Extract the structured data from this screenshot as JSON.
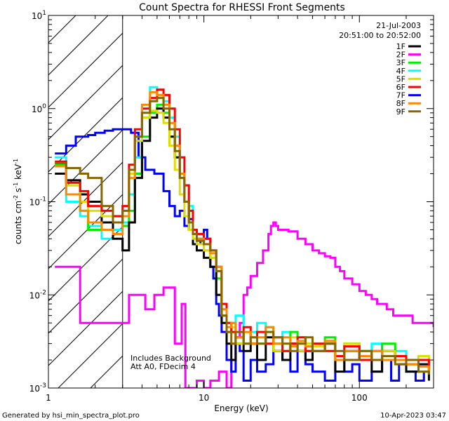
{
  "chart_data": {
    "type": "line",
    "title": "Count Spectra for RHESSI Front Segments",
    "xlabel": "Energy (keV)",
    "ylabel_parts": [
      "counts cm",
      "-2",
      " s",
      "-1",
      " keV",
      "-1"
    ],
    "xscale": "log",
    "yscale": "log",
    "xlim": [
      1,
      300
    ],
    "ylim": [
      0.001,
      10
    ],
    "x_ticks": [
      {
        "value": 1,
        "label": "1"
      },
      {
        "value": 10,
        "label": "10"
      },
      {
        "value": 100,
        "label": "100"
      }
    ],
    "y_ticks": [
      {
        "exp": -3,
        "base": "10",
        "sup": "-3"
      },
      {
        "exp": -2,
        "base": "10",
        "sup": "-2"
      },
      {
        "exp": -1,
        "base": "10",
        "sup": "-1"
      },
      {
        "exp": 0,
        "base": "10",
        "sup": "0"
      },
      {
        "exp": 1,
        "base": "10",
        "sup": "1"
      }
    ],
    "date": "21-Jul-2003",
    "time_range": "20:51:00 to 20:52:00",
    "hatched_region_kev": [
      1,
      3
    ],
    "annotations": [
      "Includes Background",
      "Att A0, FDecim 4"
    ],
    "legend": [
      {
        "name": "1F",
        "color": "#000000"
      },
      {
        "name": "2F",
        "color": "#ff00ff"
      },
      {
        "name": "3F",
        "color": "#00ee00"
      },
      {
        "name": "4F",
        "color": "#00ffff"
      },
      {
        "name": "5F",
        "color": "#dddd00"
      },
      {
        "name": "6F",
        "color": "#ff0000"
      },
      {
        "name": "7F",
        "color": "#0000ff"
      },
      {
        "name": "8F",
        "color": "#ff8800"
      },
      {
        "name": "9F",
        "color": "#886600"
      }
    ],
    "series": [
      {
        "name": "2F",
        "color": "#ff00ff",
        "x": [
          1.1,
          1.45,
          1.6,
          3.0,
          3.3,
          3.8,
          4.2,
          4.8,
          5.5,
          6.5,
          7.2,
          7.6,
          8.2,
          9,
          10,
          11,
          12.5,
          14,
          15,
          16,
          17,
          18,
          19,
          20,
          22,
          24,
          26,
          27,
          28,
          29,
          30,
          32,
          35,
          40,
          45,
          50,
          55,
          60,
          65,
          70,
          75,
          80,
          90,
          100,
          110,
          120,
          130,
          140,
          150,
          165,
          180,
          200,
          220,
          240,
          260,
          280,
          300
        ],
        "y": [
          0.02,
          0.02,
          0.005,
          0.005,
          0.01,
          0.01,
          0.007,
          0.01,
          0.012,
          0.003,
          0.008,
          0.001,
          0.001,
          0.0012,
          0.001,
          0.0012,
          0.0015,
          0.001,
          0.002,
          0.0035,
          0.005,
          0.01,
          0.012,
          0.016,
          0.022,
          0.03,
          0.045,
          0.055,
          0.06,
          0.055,
          0.05,
          0.05,
          0.048,
          0.04,
          0.035,
          0.03,
          0.028,
          0.026,
          0.025,
          0.02,
          0.018,
          0.015,
          0.013,
          0.011,
          0.01,
          0.009,
          0.008,
          0.008,
          0.007,
          0.006,
          0.006,
          0.006,
          0.005,
          0.005,
          0.005,
          0.005,
          0.0045
        ]
      },
      {
        "name": "7F",
        "color": "#0000ff",
        "x": [
          1.1,
          1.3,
          1.5,
          1.8,
          2.0,
          2.3,
          2.6,
          3.0,
          3.4,
          3.8,
          4.2,
          4.8,
          5.5,
          6.0,
          6.5,
          7.0,
          7.5,
          8.0,
          8.5,
          9.0,
          9.5,
          10,
          10.5,
          11,
          11.5,
          12,
          12.5,
          13,
          14,
          15,
          16,
          17,
          18,
          20,
          22,
          25,
          28,
          32,
          36,
          40,
          45,
          50,
          60,
          70,
          80,
          90,
          100,
          120,
          140,
          160,
          180,
          200,
          230,
          260
        ],
        "y": [
          0.33,
          0.4,
          0.5,
          0.52,
          0.55,
          0.58,
          0.6,
          0.6,
          0.55,
          0.3,
          0.22,
          0.2,
          0.13,
          0.09,
          0.07,
          0.08,
          0.055,
          0.065,
          0.05,
          0.04,
          0.035,
          0.05,
          0.04,
          0.02,
          0.015,
          0.008,
          0.006,
          0.004,
          0.002,
          0.0015,
          0.003,
          0.0025,
          0.0012,
          0.002,
          0.0015,
          0.0018,
          0.0025,
          0.002,
          0.0015,
          0.0025,
          0.0018,
          0.0015,
          0.0012,
          0.002,
          0.0015,
          0.0018,
          0.0012,
          0.0015,
          0.002,
          0.0012,
          0.0018,
          0.0015,
          0.0012,
          0.0015
        ]
      },
      {
        "name": "4F",
        "color": "#00ffff",
        "x": [
          1.1,
          1.3,
          1.6,
          1.8,
          2.2,
          2.6,
          3.0,
          3.3,
          3.6,
          4.0,
          4.5,
          5.0,
          5.5,
          6.0,
          6.5,
          7.0,
          7.5,
          8.0,
          8.5,
          9.0,
          10,
          11,
          12,
          13,
          14,
          15,
          16,
          18,
          20,
          22,
          25,
          28,
          32,
          36,
          40,
          45,
          50,
          60,
          70,
          80,
          100,
          120,
          140,
          170,
          200,
          240,
          280
        ],
        "y": [
          0.3,
          0.1,
          0.07,
          0.055,
          0.04,
          0.05,
          0.06,
          0.12,
          0.3,
          0.8,
          1.7,
          1.6,
          1.2,
          0.8,
          0.5,
          0.3,
          0.15,
          0.09,
          0.05,
          0.04,
          0.035,
          0.03,
          0.02,
          0.008,
          0.005,
          0.004,
          0.006,
          0.003,
          0.004,
          0.005,
          0.004,
          0.003,
          0.004,
          0.003,
          0.0035,
          0.003,
          0.0025,
          0.003,
          0.002,
          0.0025,
          0.002,
          0.003,
          0.002,
          0.0025,
          0.002,
          0.0015,
          0.002
        ]
      },
      {
        "name": "3F",
        "color": "#00ee00",
        "x": [
          1.1,
          1.3,
          1.6,
          1.8,
          2.2,
          2.6,
          3.0,
          3.3,
          3.6,
          4.0,
          4.5,
          5.0,
          5.5,
          6.0,
          6.5,
          7.0,
          7.5,
          8.0,
          8.5,
          9.0,
          10,
          11,
          12,
          13,
          14,
          15,
          16,
          18,
          20,
          22,
          25,
          28,
          32,
          36,
          40,
          45,
          50,
          60,
          70,
          80,
          100,
          120,
          140,
          170,
          200,
          240,
          280
        ],
        "y": [
          0.25,
          0.15,
          0.08,
          0.05,
          0.06,
          0.07,
          0.055,
          0.08,
          0.2,
          0.5,
          0.9,
          1.1,
          0.9,
          0.5,
          0.3,
          0.18,
          0.1,
          0.06,
          0.04,
          0.035,
          0.03,
          0.025,
          0.015,
          0.006,
          0.004,
          0.005,
          0.003,
          0.004,
          0.0035,
          0.003,
          0.0045,
          0.003,
          0.0025,
          0.004,
          0.003,
          0.0025,
          0.003,
          0.0035,
          0.002,
          0.003,
          0.0025,
          0.002,
          0.003,
          0.002,
          0.0018,
          0.002,
          0.0015
        ]
      },
      {
        "name": "1F",
        "color": "#000000",
        "x": [
          1.1,
          1.3,
          1.6,
          1.8,
          2.2,
          2.6,
          3.0,
          3.3,
          3.6,
          4.0,
          4.5,
          5.0,
          5.5,
          6.0,
          6.5,
          7.0,
          7.5,
          8.0,
          8.5,
          9.0,
          10,
          11,
          12,
          13,
          14,
          15,
          16,
          18,
          20,
          22,
          25,
          28,
          32,
          36,
          40,
          45,
          50,
          60,
          70,
          80,
          100,
          120,
          140,
          170,
          200,
          240,
          280
        ],
        "y": [
          0.2,
          0.17,
          0.12,
          0.1,
          0.06,
          0.04,
          0.03,
          0.06,
          0.18,
          0.45,
          0.8,
          1.0,
          0.8,
          0.5,
          0.3,
          0.2,
          0.1,
          0.05,
          0.035,
          0.03,
          0.025,
          0.02,
          0.01,
          0.005,
          0.003,
          0.002,
          0.0035,
          0.0025,
          0.003,
          0.002,
          0.0035,
          0.0025,
          0.002,
          0.003,
          0.0025,
          0.002,
          0.0025,
          0.003,
          0.0015,
          0.0025,
          0.002,
          0.0015,
          0.0025,
          0.002,
          0.0015,
          0.0018,
          0.0012
        ]
      },
      {
        "name": "5F",
        "color": "#dddd00",
        "x": [
          1.1,
          1.3,
          1.6,
          1.8,
          2.2,
          2.6,
          3.0,
          3.3,
          3.6,
          4.0,
          4.5,
          5.0,
          5.5,
          6.0,
          6.5,
          7.0,
          7.5,
          8.0,
          8.5,
          9.0,
          10,
          11,
          12,
          13,
          14,
          15,
          16,
          18,
          20,
          22,
          25,
          28,
          32,
          36,
          40,
          45,
          50,
          60,
          70,
          80,
          100,
          120,
          140,
          170,
          200,
          240,
          280
        ],
        "y": [
          0.26,
          0.15,
          0.1,
          0.08,
          0.07,
          0.06,
          0.08,
          0.2,
          0.45,
          0.8,
          0.95,
          0.9,
          0.7,
          0.4,
          0.22,
          0.12,
          0.07,
          0.05,
          0.04,
          0.035,
          0.03,
          0.025,
          0.018,
          0.007,
          0.004,
          0.0045,
          0.003,
          0.004,
          0.003,
          0.0035,
          0.004,
          0.0025,
          0.003,
          0.0035,
          0.0025,
          0.003,
          0.0028,
          0.0025,
          0.002,
          0.003,
          0.0025,
          0.002,
          0.0025,
          0.002,
          0.0018,
          0.0022,
          0.0015
        ]
      },
      {
        "name": "6F",
        "color": "#ff0000",
        "x": [
          1.1,
          1.3,
          1.6,
          1.8,
          2.2,
          2.6,
          3.0,
          3.3,
          3.6,
          4.0,
          4.5,
          5.0,
          5.5,
          6.0,
          6.5,
          7.0,
          7.5,
          8.0,
          8.5,
          9.0,
          10,
          11,
          12,
          13,
          14,
          15,
          16,
          18,
          20,
          22,
          25,
          28,
          32,
          36,
          40,
          45,
          50,
          60,
          70,
          80,
          100,
          120,
          140,
          170,
          200,
          240,
          280
        ],
        "y": [
          0.27,
          0.16,
          0.13,
          0.09,
          0.08,
          0.07,
          0.09,
          0.25,
          0.6,
          1.0,
          1.3,
          1.6,
          1.4,
          1.0,
          0.6,
          0.3,
          0.15,
          0.08,
          0.05,
          0.045,
          0.04,
          0.03,
          0.02,
          0.008,
          0.005,
          0.004,
          0.0035,
          0.0045,
          0.003,
          0.004,
          0.003,
          0.0035,
          0.0025,
          0.003,
          0.0035,
          0.0025,
          0.003,
          0.0025,
          0.0022,
          0.0028,
          0.002,
          0.0025,
          0.002,
          0.0022,
          0.0018,
          0.002,
          0.0015
        ]
      },
      {
        "name": "8F",
        "color": "#ff8800",
        "x": [
          1.1,
          1.3,
          1.6,
          1.8,
          2.2,
          2.6,
          3.0,
          3.3,
          3.6,
          4.0,
          4.5,
          5.0,
          5.5,
          6.0,
          6.5,
          7.0,
          7.5,
          8.0,
          8.5,
          9.0,
          10,
          11,
          12,
          13,
          14,
          15,
          16,
          18,
          20,
          22,
          25,
          28,
          32,
          36,
          40,
          45,
          50,
          60,
          70,
          80,
          100,
          120,
          140,
          170,
          200,
          240,
          280
        ],
        "y": [
          0.24,
          0.12,
          0.08,
          0.06,
          0.05,
          0.045,
          0.07,
          0.18,
          0.5,
          1.1,
          1.5,
          1.4,
          1.1,
          0.7,
          0.4,
          0.2,
          0.1,
          0.06,
          0.045,
          0.04,
          0.035,
          0.028,
          0.02,
          0.007,
          0.0045,
          0.005,
          0.0035,
          0.004,
          0.003,
          0.0035,
          0.0045,
          0.003,
          0.0035,
          0.0028,
          0.0032,
          0.0028,
          0.0025,
          0.0032,
          0.002,
          0.0025,
          0.0022,
          0.0025,
          0.002,
          0.002,
          0.0018,
          0.0017,
          0.0014
        ]
      },
      {
        "name": "9F",
        "color": "#886600",
        "x": [
          1.1,
          1.3,
          1.6,
          1.8,
          2.2,
          2.6,
          3.0,
          3.3,
          3.6,
          4.0,
          4.5,
          5.0,
          5.5,
          6.0,
          6.5,
          7.0,
          7.5,
          8.0,
          8.5,
          9.0,
          10,
          11,
          12,
          13,
          14,
          15,
          16,
          18,
          20,
          22,
          25,
          28,
          32,
          36,
          40,
          45,
          50,
          60,
          70,
          80,
          100,
          120,
          140,
          170,
          200,
          240,
          280
        ],
        "y": [
          0.26,
          0.23,
          0.2,
          0.18,
          0.09,
          0.06,
          0.08,
          0.22,
          0.5,
          0.9,
          1.2,
          1.3,
          1.0,
          0.6,
          0.35,
          0.18,
          0.1,
          0.06,
          0.045,
          0.038,
          0.035,
          0.03,
          0.018,
          0.006,
          0.004,
          0.003,
          0.004,
          0.003,
          0.0035,
          0.003,
          0.004,
          0.0035,
          0.003,
          0.0025,
          0.003,
          0.0035,
          0.0025,
          0.003,
          0.0025,
          0.002,
          0.0025,
          0.002,
          0.0022,
          0.0018,
          0.002,
          0.0015,
          0.0014
        ]
      }
    ]
  },
  "footer": {
    "generated_by": "Generated by hsi_min_spectra_plot.pro",
    "timestamp": "10-Apr-2023 03:47"
  }
}
